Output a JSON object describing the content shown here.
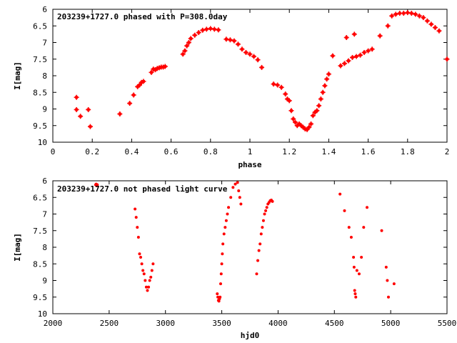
{
  "colors": {
    "marker": "#ff0000",
    "axis": "#000000",
    "background": "#ffffff"
  },
  "chart_data": [
    {
      "type": "scatter",
      "title": "203239+1727.0 phased with P=308.0day",
      "xlabel": "phase",
      "ylabel": "I[mag]",
      "xlim": [
        0,
        2
      ],
      "ylim": [
        10,
        6
      ],
      "y_inverted": true,
      "grid": false,
      "marker": "plus-square",
      "xticks": [
        "0",
        "0.2",
        "0.4",
        "0.6",
        "0.8",
        "1",
        "1.2",
        "1.4",
        "1.6",
        "1.8",
        "2"
      ],
      "yticks": [
        "6",
        "6.5",
        "7",
        "7.5",
        "8",
        "8.5",
        "9",
        "9.5",
        "10"
      ],
      "series": [
        {
          "x": [
            0.12,
            0.12,
            0.14,
            0.18,
            0.19,
            0.34,
            0.39,
            0.41,
            0.43,
            0.44,
            0.45,
            0.46,
            0.5,
            0.51,
            0.52,
            0.53,
            0.54,
            0.55,
            0.56,
            0.57,
            0.66,
            0.67,
            0.68,
            0.69,
            0.7,
            0.72,
            0.74,
            0.76,
            0.78,
            0.8,
            0.82,
            0.84,
            0.88,
            0.9,
            0.92,
            0.94,
            0.96,
            0.98,
            1.0,
            1.02,
            1.04,
            1.06,
            1.12,
            1.14,
            1.16,
            1.18,
            1.19,
            1.2,
            1.21,
            1.22,
            1.23,
            1.24,
            1.25,
            1.26,
            1.27,
            1.28,
            1.29,
            1.3,
            1.31,
            1.32,
            1.33,
            1.34,
            1.35,
            1.36,
            1.37,
            1.38,
            1.39,
            1.4,
            1.42,
            1.46,
            1.48,
            1.49,
            1.5,
            1.52,
            1.53,
            1.54,
            1.56,
            1.58,
            1.6,
            1.62,
            1.66,
            1.7,
            1.72,
            1.74,
            1.76,
            1.78,
            1.8,
            1.82,
            1.84,
            1.86,
            1.88,
            1.9,
            1.92,
            1.94,
            1.96,
            2.0
          ],
          "y": [
            8.65,
            9.02,
            9.22,
            9.02,
            9.53,
            9.15,
            8.83,
            8.58,
            8.33,
            8.28,
            8.2,
            8.17,
            7.9,
            7.8,
            7.82,
            7.78,
            7.76,
            7.74,
            7.74,
            7.72,
            7.35,
            7.25,
            7.1,
            7.0,
            6.88,
            6.78,
            6.7,
            6.63,
            6.6,
            6.58,
            6.6,
            6.62,
            6.9,
            6.92,
            6.95,
            7.05,
            7.2,
            7.3,
            7.35,
            7.42,
            7.52,
            7.75,
            8.25,
            8.28,
            8.35,
            8.55,
            8.7,
            8.75,
            9.05,
            9.3,
            9.4,
            9.5,
            9.45,
            9.5,
            9.55,
            9.6,
            9.62,
            9.55,
            9.45,
            9.2,
            9.1,
            9.05,
            8.9,
            8.7,
            8.5,
            8.3,
            8.1,
            7.95,
            7.4,
            7.7,
            7.63,
            6.85,
            7.55,
            7.45,
            6.75,
            7.42,
            7.38,
            7.3,
            7.25,
            7.2,
            6.8,
            6.5,
            6.2,
            6.15,
            6.12,
            6.12,
            6.1,
            6.12,
            6.15,
            6.2,
            6.25,
            6.35,
            6.45,
            6.55,
            6.65,
            7.5
          ]
        }
      ]
    },
    {
      "type": "scatter",
      "title": "203239+1727.0 not phased light curve",
      "xlabel": "hjd0",
      "ylabel": "I[mag]",
      "xlim": [
        2000,
        5500
      ],
      "ylim": [
        10,
        6
      ],
      "y_inverted": true,
      "grid": false,
      "marker": "dot",
      "xticks": [
        "2000",
        "2500",
        "3000",
        "3500",
        "4000",
        "4500",
        "5000",
        "5500"
      ],
      "yticks": [
        "6",
        "6.5",
        "7",
        "7.5",
        "8",
        "8.5",
        "9",
        "9.5",
        "10"
      ],
      "series": [
        {
          "x": [
            2380,
            2385,
            2390,
            2395,
            2730,
            2740,
            2750,
            2760,
            2770,
            2780,
            2790,
            2800,
            2810,
            2820,
            2830,
            2840,
            2850,
            2860,
            2870,
            2880,
            2890,
            3460,
            3465,
            3470,
            3475,
            3480,
            3485,
            3490,
            3495,
            3500,
            3505,
            3510,
            3520,
            3530,
            3540,
            3550,
            3560,
            3580,
            3600,
            3620,
            3640,
            3650,
            3660,
            3670,
            3810,
            3820,
            3830,
            3840,
            3850,
            3860,
            3870,
            3880,
            3890,
            3900,
            3910,
            3920,
            3930,
            3940,
            3950,
            4550,
            4590,
            4630,
            4650,
            4670,
            4675,
            4680,
            4685,
            4690,
            4700,
            4720,
            4740,
            4760,
            4790,
            4920,
            4960,
            4970,
            4980,
            5030
          ],
          "y": [
            6.12,
            6.1,
            6.15,
            6.12,
            6.85,
            7.1,
            7.4,
            7.7,
            8.2,
            8.3,
            8.5,
            8.7,
            8.8,
            9.0,
            9.2,
            9.3,
            9.2,
            9.0,
            8.9,
            8.7,
            8.5,
            9.4,
            9.5,
            9.6,
            9.62,
            9.55,
            9.5,
            9.1,
            8.8,
            8.5,
            8.2,
            7.9,
            7.6,
            7.4,
            7.2,
            7.0,
            6.8,
            6.5,
            6.2,
            6.1,
            6.05,
            6.3,
            6.5,
            6.7,
            8.8,
            8.4,
            8.1,
            7.9,
            7.6,
            7.4,
            7.2,
            7.0,
            6.9,
            6.8,
            6.7,
            6.65,
            6.6,
            6.58,
            6.62,
            6.4,
            6.9,
            7.4,
            7.7,
            8.3,
            8.6,
            9.3,
            9.4,
            9.5,
            8.7,
            8.8,
            8.3,
            7.4,
            6.8,
            7.5,
            8.6,
            9.0,
            9.5,
            9.1
          ]
        }
      ]
    }
  ]
}
